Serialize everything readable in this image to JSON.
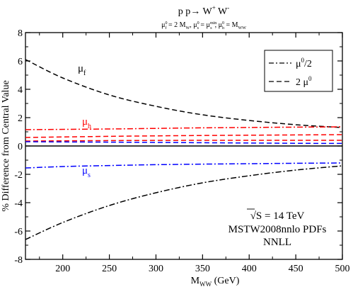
{
  "chart_data": {
    "type": "line",
    "title": {
      "base": "p p→ W",
      "sup1": "+",
      "mid": " W",
      "sup2": "-"
    },
    "subtitle": {
      "p1": "μ",
      "p1_sup": "0",
      "p1_sub": "f",
      "p1_rest": " = 2 M",
      "p2_sub": "W",
      "p2_rest": ", μ",
      "p2_sup": "0",
      "p2_sub2": "s",
      "p2_rest2": " = μ",
      "p3_sup": "min",
      "p3_sub": "s",
      "p3_rest": ",  μ",
      "p3_sup2": "0",
      "p3_sub2": "h",
      "p3_rest2": " = M",
      "p4_sub": "WW"
    },
    "xlabel": {
      "base": "M",
      "sub": "WW",
      "rest": " (GeV)"
    },
    "ylabel": "% Difference from Central Value",
    "xlim": [
      160,
      500
    ],
    "ylim": [
      -8,
      8
    ],
    "xticks": [
      200,
      250,
      300,
      350,
      400,
      450,
      500
    ],
    "yticks": [
      -8,
      -6,
      -4,
      -2,
      0,
      2,
      4,
      6,
      8
    ],
    "legend": {
      "position": "top-right",
      "entries": [
        {
          "style": "dashdot",
          "label": "μ",
          "sup": "0",
          "rest": "/2"
        },
        {
          "style": "dashed",
          "label": "2 μ",
          "sup": "0",
          "rest": ""
        }
      ]
    },
    "curve_labels": [
      {
        "text": "μ",
        "sub": "f",
        "color": "#000000"
      },
      {
        "text": "μ",
        "sub": "h",
        "color": "#ff0000"
      },
      {
        "text": "μ",
        "sub": "s",
        "color": "#0000ff"
      }
    ],
    "annotation": {
      "sqrt": "√",
      "line1": "S = 14 TeV",
      "line2": "MSTW2008nnlo PDFs",
      "line3": "NNLL"
    },
    "colors": {
      "f": "#000000",
      "h": "#ff0000",
      "s": "#0000ff",
      "zero": "#000000"
    },
    "series": [
      {
        "scale": "f",
        "variation": "mu0/2",
        "style": "dashdot",
        "x": [
          160,
          200,
          250,
          300,
          350,
          400,
          450,
          500
        ],
        "y": [
          -6.6,
          -5.4,
          -4.2,
          -3.3,
          -2.6,
          -2.1,
          -1.7,
          -1.4
        ]
      },
      {
        "scale": "f",
        "variation": "2mu0",
        "style": "dashed",
        "x": [
          160,
          200,
          250,
          300,
          350,
          400,
          450,
          500
        ],
        "y": [
          6.1,
          4.8,
          3.6,
          2.8,
          2.2,
          1.8,
          1.5,
          1.3
        ]
      },
      {
        "scale": "h",
        "variation": "mu0/2",
        "style": "dashdot",
        "x": [
          160,
          250,
          350,
          450,
          500
        ],
        "y": [
          1.15,
          1.2,
          1.28,
          1.33,
          1.35
        ]
      },
      {
        "scale": "h",
        "variation": "2mu0",
        "style": "dashed",
        "x": [
          160,
          250,
          350,
          450,
          500
        ],
        "y": [
          0.6,
          0.68,
          0.74,
          0.78,
          0.8
        ]
      },
      {
        "scale": "h",
        "variation": "central-ish",
        "style": "dashed",
        "x": [
          160,
          250,
          350,
          450,
          500
        ],
        "y": [
          0.35,
          0.38,
          0.4,
          0.4,
          0.4
        ]
      },
      {
        "scale": "s",
        "variation": "mu0/2",
        "style": "dashdot",
        "x": [
          160,
          200,
          250,
          300,
          350,
          400,
          450,
          500
        ],
        "y": [
          -1.55,
          -1.45,
          -1.38,
          -1.32,
          -1.28,
          -1.25,
          -1.22,
          -1.2
        ]
      },
      {
        "scale": "s",
        "variation": "2mu0",
        "style": "dashed",
        "x": [
          160,
          250,
          350,
          450,
          500
        ],
        "y": [
          0.3,
          0.27,
          0.23,
          0.19,
          0.18
        ]
      },
      {
        "scale": "zero",
        "variation": "central",
        "style": "solid",
        "x": [
          160,
          500
        ],
        "y": [
          0,
          0
        ]
      }
    ]
  }
}
